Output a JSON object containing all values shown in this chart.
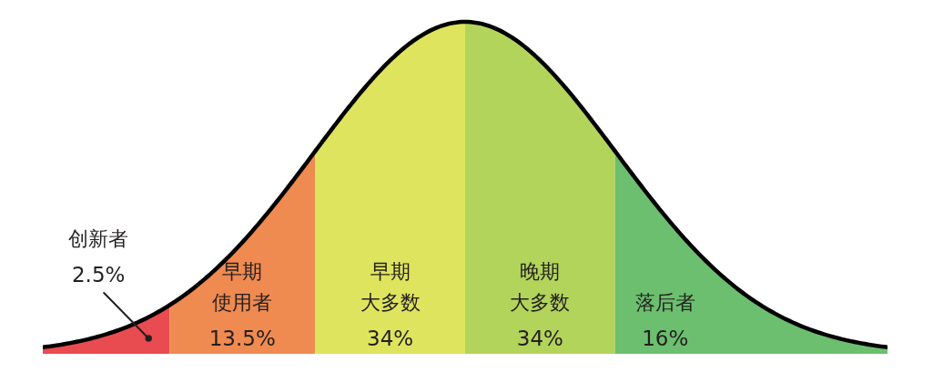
{
  "chart_data": {
    "type": "other",
    "categories": [
      "创新者",
      "早期使用者",
      "早期大多数",
      "晚期大多数",
      "落后者"
    ],
    "values": [
      2.5,
      13.5,
      34,
      34,
      16
    ],
    "value_labels": [
      "2.5%",
      "13.5%",
      "34%",
      "34%",
      "16%"
    ],
    "colors": [
      "#e84b50",
      "#ef8a50",
      "#dfe45e",
      "#b3d45a",
      "#6bbf6e"
    ]
  }
}
